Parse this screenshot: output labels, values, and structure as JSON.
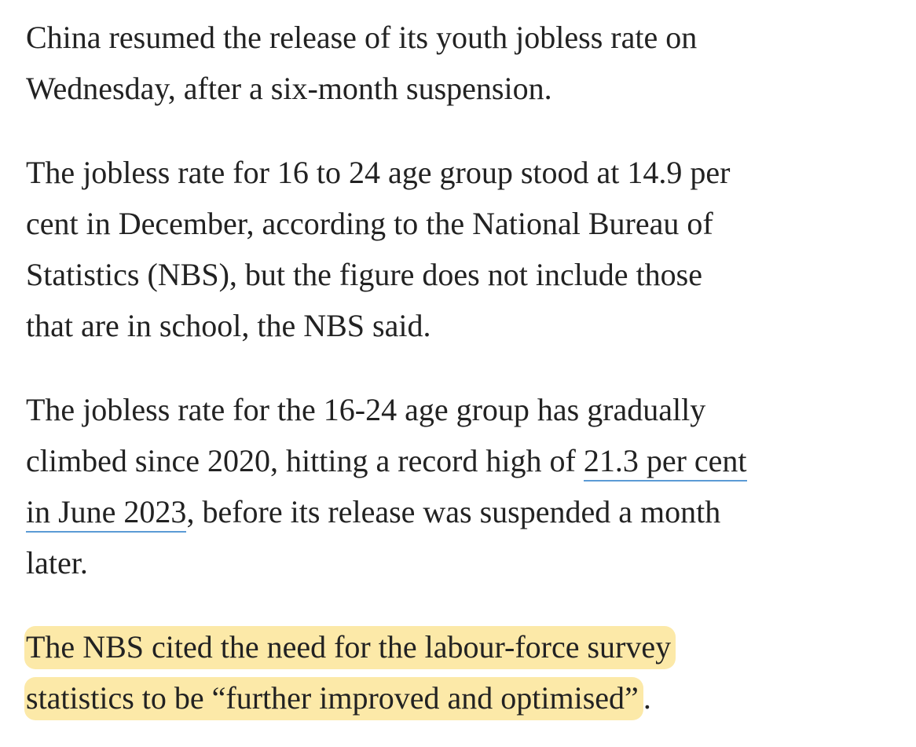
{
  "paragraphs": [
    {
      "lines": [
        "China resumed the release of its youth jobless rate on",
        "Wednesday, after a six-month suspension."
      ]
    },
    {
      "lines": [
        "The jobless rate for 16 to 24 age group stood at 14.9 per",
        "cent in December, according to the National Bureau of",
        "Statistics (NBS), but the figure does not include those",
        "that are in school, the NBS said."
      ]
    },
    {
      "lines": [
        "The jobless rate for the 16-24 age group has gradually",
        [
          "climbed since 2020, hitting a record high of",
          "21.3 per cent"
        ],
        [
          "in June 2023",
          ", before its release was suspended a month"
        ],
        "later."
      ]
    },
    {
      "lines": [
        "The NBS cited the need for the labour-force survey",
        [
          "statistics to be “further improved and optimised”",
          "."
        ]
      ]
    }
  ]
}
